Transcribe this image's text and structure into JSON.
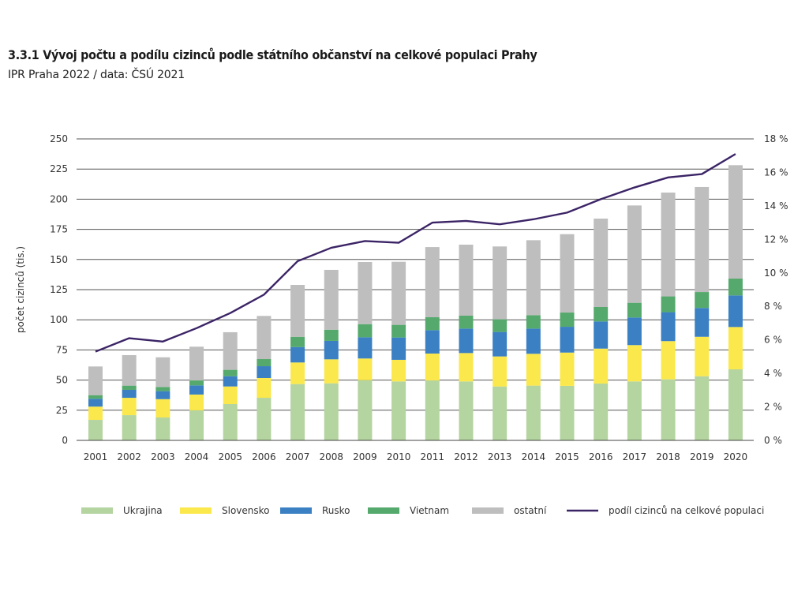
{
  "header": {
    "title": "3.3.1 Vývoj počtu a podílu cizinců podle státního občanství na celkové populaci Prahy",
    "subtitle": "IPR Praha 2022 / data: ČSÚ 2021"
  },
  "chart_data": {
    "type": "bar",
    "stacked": true,
    "title": "3.3.1 Vývoj počtu a podílu cizinců podle státního občanství na celkové populaci Prahy",
    "subtitle": "IPR Praha 2022 / data: ČSÚ 2021",
    "xlabel": "",
    "ylabel": "počet cizinců (tis.)",
    "ylim": [
      0,
      250
    ],
    "yticks": [
      0,
      25,
      50,
      75,
      100,
      125,
      150,
      175,
      200,
      225,
      250
    ],
    "y2lim": [
      0,
      18
    ],
    "y2ticks": [
      "0 %",
      "2 %",
      "4 %",
      "6 %",
      "8 %",
      "10 %",
      "12 %",
      "14 %",
      "16 %",
      "18 %"
    ],
    "y2ticks_values": [
      0,
      2,
      4,
      6,
      8,
      10,
      12,
      14,
      16,
      18
    ],
    "grid": true,
    "legend_position": "bottom",
    "categories": [
      "2001",
      "2002",
      "2003",
      "2004",
      "2005",
      "2006",
      "2007",
      "2008",
      "2009",
      "2010",
      "2011",
      "2012",
      "2013",
      "2014",
      "2015",
      "2016",
      "2017",
      "2018",
      "2019",
      "2020"
    ],
    "series": [
      {
        "name": "Ukrajina",
        "color": "#b4d4a0",
        "values": [
          17.0,
          20.9,
          19.0,
          24.9,
          30.1,
          35.3,
          46.7,
          47.3,
          49.9,
          48.9,
          49.7,
          48.9,
          44.7,
          45.4,
          45.2,
          47.1,
          48.9,
          50.6,
          53.2,
          58.9
        ]
      },
      {
        "name": "Slovensko",
        "color": "#fbe84c",
        "values": [
          11.0,
          14.4,
          15.2,
          13.1,
          14.6,
          16.4,
          17.9,
          19.9,
          18.0,
          17.9,
          22.3,
          23.5,
          24.9,
          26.4,
          27.6,
          29.0,
          30.1,
          31.7,
          32.7,
          35.1
        ]
      },
      {
        "name": "Rusko",
        "color": "#3a80c3",
        "values": [
          6.5,
          6.6,
          6.6,
          7.6,
          8.5,
          9.8,
          12.8,
          15.3,
          17.6,
          18.5,
          19.4,
          20.3,
          20.3,
          20.9,
          21.4,
          22.5,
          22.9,
          24.0,
          23.9,
          26.2
        ]
      },
      {
        "name": "Vietnam",
        "color": "#55a96c",
        "values": [
          3.0,
          3.5,
          3.5,
          4.1,
          5.3,
          5.9,
          8.5,
          9.3,
          10.9,
          10.5,
          10.7,
          10.7,
          10.5,
          11.1,
          11.8,
          12.0,
          12.2,
          13.1,
          13.2,
          14.0
        ]
      },
      {
        "name": "ostatní",
        "color": "#bebebe",
        "values": [
          23.8,
          25.3,
          24.6,
          28.0,
          31.2,
          35.8,
          43.0,
          49.6,
          51.5,
          52.3,
          58.2,
          58.9,
          60.4,
          62.2,
          65.0,
          73.3,
          80.7,
          86.1,
          87.1,
          94.0
        ]
      }
    ],
    "line_series": {
      "name": "podíl cizinců na celkové populaci",
      "color": "#3b2466",
      "axis": "right",
      "unit": "%",
      "values": [
        5.3,
        6.1,
        5.9,
        6.7,
        7.6,
        8.7,
        10.7,
        11.5,
        11.9,
        11.8,
        13.0,
        13.1,
        12.9,
        13.2,
        13.6,
        14.4,
        15.1,
        15.7,
        15.9,
        17.1
      ]
    }
  }
}
